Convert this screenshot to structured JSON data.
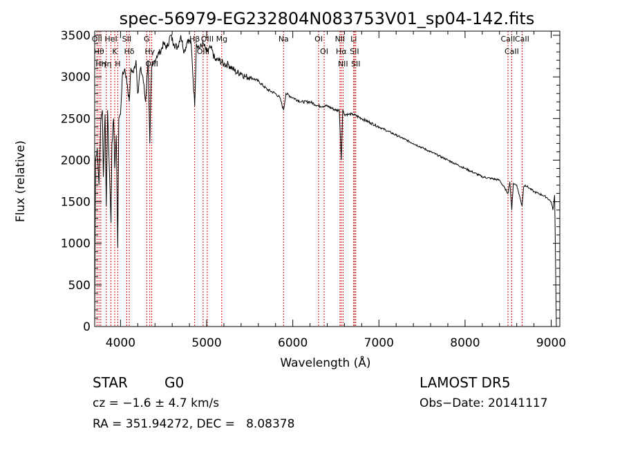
{
  "chart_data": {
    "type": "line",
    "title": "spec-56979-EG232804N083753V01_sp04-142.fits",
    "xlabel": "Wavelength (Å)",
    "ylabel": "Flux (relative)",
    "xlim": [
      3700,
      9100
    ],
    "ylim": [
      0,
      3550
    ],
    "x_ticks": [
      4000,
      5000,
      6000,
      7000,
      8000,
      9000
    ],
    "y_ticks": [
      0,
      500,
      1000,
      1500,
      2000,
      2500,
      3000,
      3500
    ],
    "grid": false,
    "series": [
      {
        "name": "",
        "x": [
          3700,
          3710,
          3730,
          3750,
          3770,
          3790,
          3800,
          3820,
          3835,
          3850,
          3870,
          3889,
          3900,
          3920,
          3933,
          3950,
          3968,
          3980,
          4000,
          4020,
          4050,
          4080,
          4101,
          4120,
          4150,
          4180,
          4200,
          4230,
          4260,
          4290,
          4320,
          4340,
          4360,
          4380,
          4420,
          4460,
          4500,
          4540,
          4580,
          4620,
          4660,
          4700,
          4740,
          4780,
          4820,
          4861,
          4880,
          4920,
          4960,
          5000,
          5050,
          5100,
          5150,
          5200,
          5250,
          5300,
          5350,
          5400,
          5450,
          5500,
          5600,
          5700,
          5800,
          5850,
          5893,
          5920,
          6000,
          6100,
          6200,
          6300,
          6400,
          6500,
          6540,
          6563,
          6580,
          6600,
          6650,
          6700,
          6800,
          6900,
          7000,
          7100,
          7200,
          7300,
          7400,
          7500,
          7600,
          7700,
          7800,
          7900,
          8000,
          8100,
          8200,
          8300,
          8400,
          8498,
          8520,
          8542,
          8560,
          8600,
          8662,
          8680,
          8700,
          8750,
          8800,
          8850,
          8900,
          8950,
          9000,
          9020,
          9040,
          9060
        ],
        "y": [
          0,
          2000,
          2150,
          1700,
          2450,
          2600,
          1800,
          2550,
          1450,
          2600,
          1900,
          1250,
          2200,
          2500,
          1900,
          2300,
          950,
          2500,
          2550,
          3000,
          3100,
          2900,
          2700,
          3100,
          3050,
          3200,
          2800,
          3100,
          3000,
          2700,
          3200,
          2200,
          3100,
          3150,
          3250,
          3300,
          3400,
          3350,
          3500,
          3400,
          3350,
          3500,
          3300,
          3450,
          3400,
          2650,
          3400,
          3350,
          3400,
          3300,
          3350,
          3200,
          3200,
          3150,
          3150,
          3100,
          3050,
          3050,
          3000,
          3000,
          2950,
          2850,
          2800,
          2750,
          2600,
          2800,
          2750,
          2700,
          2700,
          2650,
          2650,
          2600,
          2600,
          2000,
          2600,
          2550,
          2550,
          2550,
          2500,
          2450,
          2400,
          2350,
          2300,
          2250,
          2200,
          2150,
          2100,
          2050,
          2000,
          1950,
          1900,
          1850,
          1800,
          1780,
          1760,
          1600,
          1740,
          1400,
          1720,
          1700,
          1450,
          1680,
          1700,
          1660,
          1620,
          1600,
          1580,
          1550,
          1500,
          1400,
          1580,
          0
        ]
      }
    ],
    "lines": [
      {
        "wl": 3727,
        "label": "OII"
      },
      {
        "wl": 3750,
        "label": "Hθ"
      },
      {
        "wl": 3771,
        "label": "Hη"
      },
      {
        "wl": 3835,
        "label": "Hη"
      },
      {
        "wl": 3889,
        "label": "HeI"
      },
      {
        "wl": 3933,
        "label": "K"
      },
      {
        "wl": 3968,
        "label": "H"
      },
      {
        "wl": 4072,
        "label": "SII"
      },
      {
        "wl": 4101,
        "label": "Hδ"
      },
      {
        "wl": 4304,
        "label": "G"
      },
      {
        "wl": 4340,
        "label": "Hγ"
      },
      {
        "wl": 4363,
        "label": "OIII"
      },
      {
        "wl": 4861,
        "label": "Hβ"
      },
      {
        "wl": 4959,
        "label": "OIII"
      },
      {
        "wl": 5007,
        "label": "OIII"
      },
      {
        "wl": 5175,
        "label": "Mg"
      },
      {
        "wl": 5893,
        "label": "Na"
      },
      {
        "wl": 6300,
        "label": "OI"
      },
      {
        "wl": 6364,
        "label": "OI"
      },
      {
        "wl": 6548,
        "label": "NII"
      },
      {
        "wl": 6563,
        "label": "Hα"
      },
      {
        "wl": 6583,
        "label": "NII"
      },
      {
        "wl": 6707,
        "label": "Li"
      },
      {
        "wl": 6716,
        "label": "SII"
      },
      {
        "wl": 6731,
        "label": "SII"
      },
      {
        "wl": 8498,
        "label": "CaII"
      },
      {
        "wl": 8542,
        "label": "CaII"
      },
      {
        "wl": 8662,
        "label": "CaII"
      }
    ]
  },
  "info": {
    "class": "STAR",
    "subclass": "G0",
    "survey": "LAMOST DR5",
    "cz": "cz = −1.6 ± 4.7 km/s",
    "obs_date": "Obs−Date: 20141117",
    "coords": "RA = 351.94272, DEC =   8.08378"
  },
  "colors": {
    "line_marker": "#cc0000",
    "spectrum": "#000000"
  }
}
